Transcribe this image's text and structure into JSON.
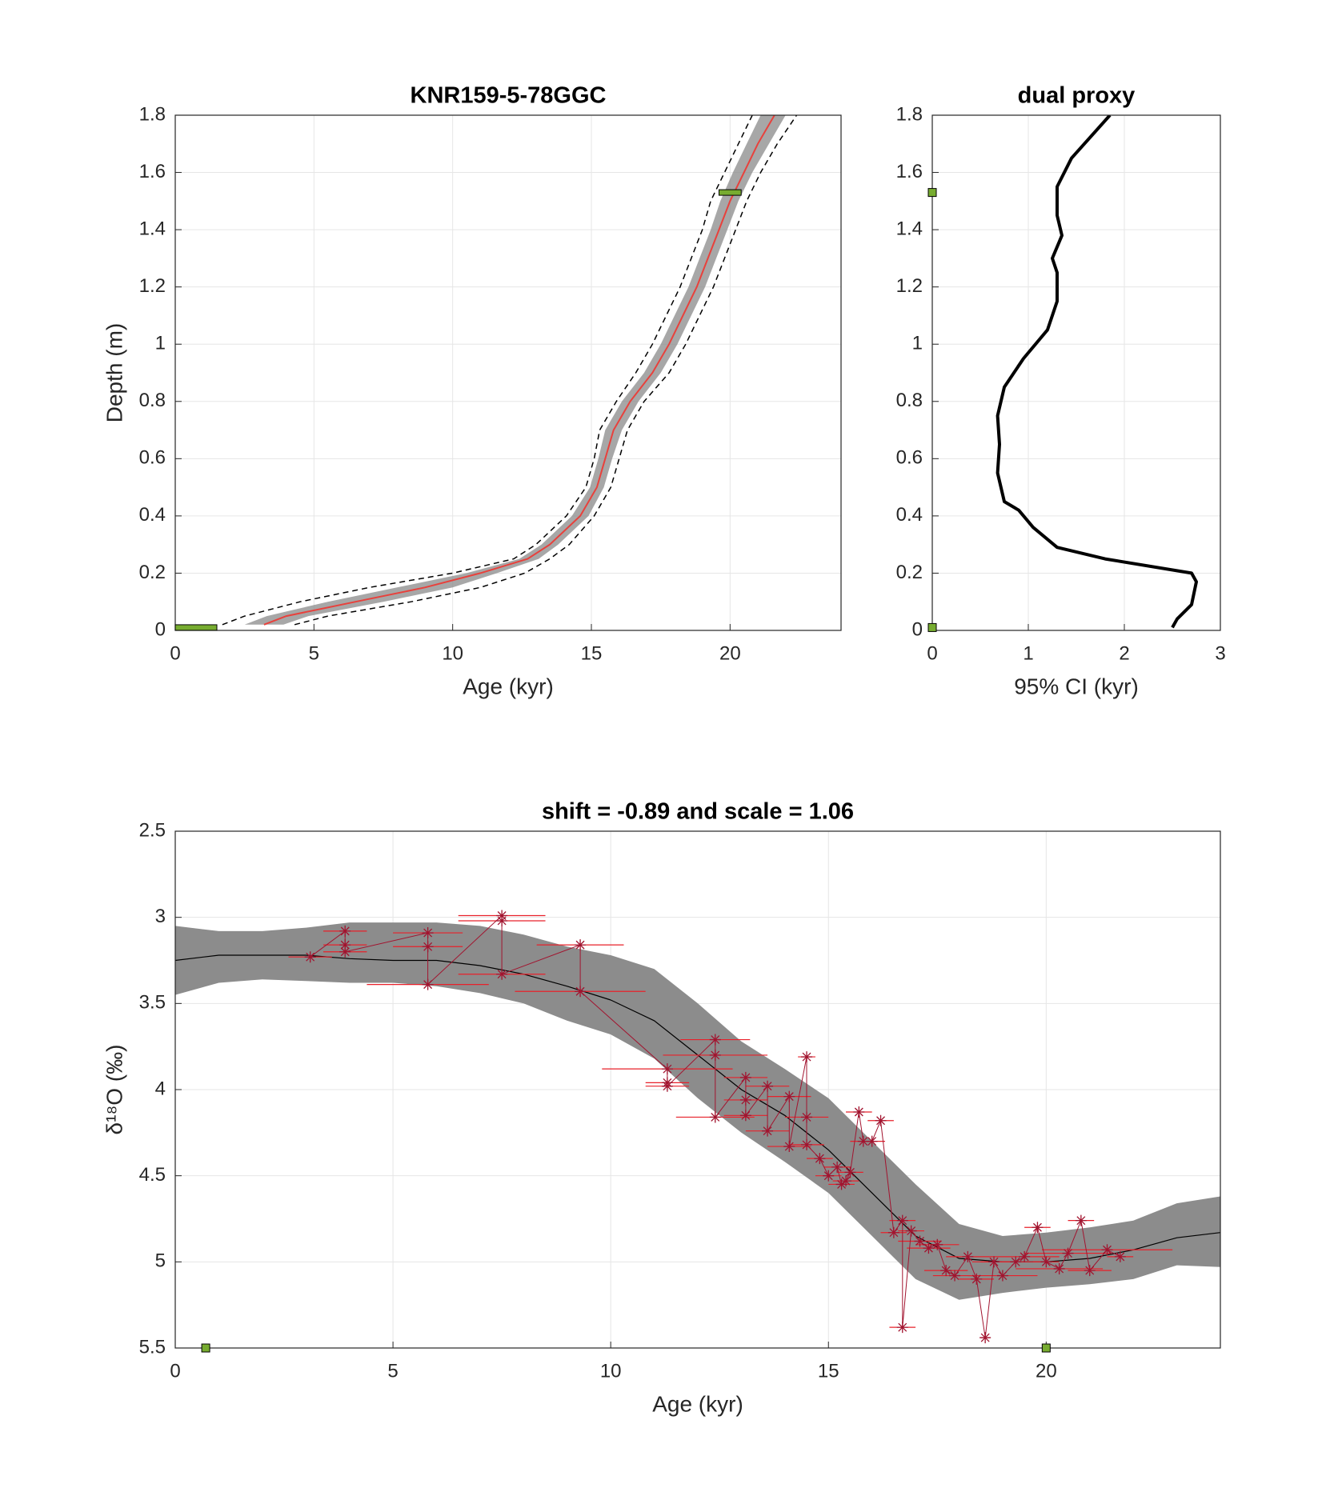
{
  "chart_data": [
    {
      "type": "line",
      "title": "KNR159-5-78GGC",
      "xlabel": "Age (kyr)",
      "ylabel": "Depth (m)",
      "xlim": [
        0,
        24
      ],
      "ylim": [
        0,
        1.8
      ],
      "xticks": [
        0,
        5,
        10,
        15,
        20
      ],
      "yticks": [
        0,
        0.2,
        0.4,
        0.6,
        0.8,
        1,
        1.2,
        1.4,
        1.6,
        1.8
      ],
      "grid": true,
      "y": [
        0.02,
        0.05,
        0.1,
        0.15,
        0.2,
        0.25,
        0.3,
        0.4,
        0.5,
        0.6,
        0.7,
        0.8,
        0.9,
        1.0,
        1.1,
        1.2,
        1.3,
        1.4,
        1.5,
        1.6,
        1.7,
        1.8
      ],
      "band": {
        "color": "#8a8a8a",
        "low": [
          2.5,
          3.3,
          5.5,
          8,
          10.5,
          12.4,
          13.2,
          14.3,
          14.95,
          15.25,
          15.5,
          16.1,
          16.9,
          17.5,
          18,
          18.5,
          18.9,
          19.3,
          19.65,
          20.1,
          20.6,
          21.1
        ],
        "high": [
          3.9,
          4.8,
          7.5,
          10,
          11.6,
          13.1,
          13.8,
          14.9,
          15.45,
          15.75,
          16.1,
          16.7,
          17.5,
          18.1,
          18.6,
          19.1,
          19.5,
          19.9,
          20.3,
          20.8,
          21.4,
          22.0
        ]
      },
      "series": [
        {
          "color": "#000000",
          "dash": true,
          "x": [
            1.7,
            2.5,
            4.5,
            7,
            10,
            12.2,
            13,
            14.1,
            14.8,
            15.1,
            15.3,
            15.9,
            16.6,
            17.2,
            17.7,
            18.2,
            18.6,
            19.0,
            19.3,
            19.8,
            20.3,
            20.8
          ]
        },
        {
          "color": "#000000",
          "dash": true,
          "x": [
            4.3,
            5.5,
            8.5,
            11,
            12.6,
            13.5,
            14.2,
            15.1,
            15.7,
            16.0,
            16.3,
            16.9,
            17.8,
            18.4,
            18.9,
            19.4,
            19.8,
            20.2,
            20.6,
            21.1,
            21.7,
            22.4
          ]
        },
        {
          "color": "#e8413c",
          "dash": false,
          "x": [
            3.2,
            4,
            6.5,
            9,
            11,
            12.7,
            13.5,
            14.6,
            15.2,
            15.5,
            15.8,
            16.4,
            17.2,
            17.8,
            18.3,
            18.8,
            19.2,
            19.6,
            20.0,
            20.5,
            21.0,
            21.6
          ]
        }
      ],
      "dates": {
        "color": "#77ac30",
        "x": [
          0.75,
          20
        ],
        "xerr": [
          0.75,
          0.4
        ],
        "y": [
          0.01,
          1.53
        ]
      }
    },
    {
      "type": "line",
      "title": "dual proxy",
      "xlabel": "95% CI (kyr)",
      "xlim": [
        0,
        3
      ],
      "ylim": [
        0,
        1.8
      ],
      "xticks": [
        0,
        1,
        2,
        3
      ],
      "yticks": [
        0,
        0.2,
        0.4,
        0.6,
        0.8,
        1,
        1.2,
        1.4,
        1.6,
        1.8
      ],
      "grid": true,
      "color": "#000000",
      "x": [
        2.5,
        2.55,
        2.7,
        2.75,
        2.7,
        1.8,
        1.3,
        1.05,
        0.9,
        0.75,
        0.68,
        0.7,
        0.68,
        0.75,
        0.95,
        1.2,
        1.3,
        1.3,
        1.25,
        1.35,
        1.3,
        1.3,
        1.45,
        1.85
      ],
      "y": [
        0.01,
        0.04,
        0.09,
        0.17,
        0.2,
        0.25,
        0.29,
        0.36,
        0.42,
        0.45,
        0.55,
        0.65,
        0.75,
        0.85,
        0.95,
        1.05,
        1.15,
        1.25,
        1.3,
        1.38,
        1.45,
        1.55,
        1.65,
        1.8
      ],
      "dates": {
        "color": "#77ac30",
        "x": [
          0,
          0
        ],
        "y": [
          0.01,
          1.53
        ]
      }
    },
    {
      "type": "scatter",
      "title": "shift = -0.89 and scale = 1.06",
      "xlabel": "Age (kyr)",
      "ylabel": "δ¹⁸O (‰)",
      "xlim": [
        0,
        24
      ],
      "ylim": [
        2.5,
        5.5
      ],
      "y_reversed": true,
      "xticks": [
        0,
        5,
        10,
        15,
        20
      ],
      "yticks": [
        2.5,
        3,
        3.5,
        4,
        4.5,
        5,
        5.5
      ],
      "grid": true,
      "model": {
        "color": "#000000",
        "band_color": "#8c8c8c",
        "x": [
          0,
          1,
          2,
          3,
          4,
          5,
          6,
          7,
          8,
          9,
          10,
          11,
          12,
          13,
          14,
          15,
          16,
          17,
          18,
          19,
          20,
          21,
          22,
          23,
          24
        ],
        "values": [
          3.25,
          3.22,
          3.22,
          3.22,
          3.24,
          3.25,
          3.25,
          3.28,
          3.33,
          3.4,
          3.48,
          3.6,
          3.8,
          4.0,
          4.15,
          4.35,
          4.6,
          4.85,
          4.98,
          5.0,
          5.0,
          4.98,
          4.93,
          4.86,
          4.83
        ],
        "low": [
          3.05,
          3.08,
          3.08,
          3.06,
          3.03,
          3.03,
          3.03,
          3.05,
          3.1,
          3.17,
          3.22,
          3.3,
          3.5,
          3.72,
          3.88,
          4.05,
          4.3,
          4.55,
          4.78,
          4.85,
          4.83,
          4.8,
          4.76,
          4.66,
          4.62
        ],
        "high": [
          3.45,
          3.38,
          3.36,
          3.37,
          3.38,
          3.38,
          3.4,
          3.44,
          3.5,
          3.6,
          3.68,
          3.82,
          4.05,
          4.25,
          4.42,
          4.6,
          4.85,
          5.1,
          5.22,
          5.18,
          5.15,
          5.13,
          5.1,
          5.02,
          5.03
        ]
      },
      "marker_color": "#a2142f",
      "errorbar_color": "#e8202a",
      "x": [
        3.1,
        3.9,
        3.9,
        3.9,
        5.8,
        5.8,
        5.8,
        7.5,
        7.5,
        7.5,
        9.3,
        9.3,
        11.3,
        11.3,
        11.3,
        12.4,
        12.4,
        12.4,
        13.1,
        13.1,
        13.1,
        13.6,
        13.6,
        14.1,
        14.1,
        14.5,
        14.5,
        14.5,
        14.8,
        15.0,
        15.2,
        15.3,
        15.4,
        15.5,
        15.7,
        15.8,
        16.0,
        16.2,
        16.5,
        16.7,
        16.7,
        16.9,
        17.1,
        17.3,
        17.5,
        17.7,
        17.9,
        18.2,
        18.4,
        18.6,
        18.8,
        19.0,
        19.3,
        19.5,
        19.8,
        20.0,
        20.3,
        20.5,
        20.8,
        21.0,
        21.4,
        21.7
      ],
      "values": [
        3.23,
        3.08,
        3.16,
        3.2,
        3.09,
        3.17,
        3.39,
        2.99,
        3.02,
        3.33,
        3.16,
        3.43,
        3.88,
        3.96,
        3.98,
        3.71,
        3.8,
        4.16,
        3.93,
        4.06,
        4.15,
        3.98,
        4.24,
        4.04,
        4.33,
        3.81,
        4.16,
        4.32,
        4.4,
        4.5,
        4.45,
        4.55,
        4.53,
        4.48,
        4.13,
        4.3,
        4.3,
        4.18,
        4.83,
        4.76,
        5.38,
        4.82,
        4.88,
        4.92,
        4.9,
        5.05,
        5.08,
        4.97,
        5.1,
        5.44,
        5.0,
        5.08,
        5.0,
        4.97,
        4.8,
        5.0,
        5.04,
        4.95,
        4.76,
        5.05,
        4.93,
        4.97
      ],
      "xerr": [
        0.5,
        0.5,
        0.5,
        0.5,
        0.8,
        0.8,
        1.4,
        1,
        1,
        1,
        1,
        1.5,
        1.5,
        0.5,
        0.5,
        0.8,
        1.2,
        0.9,
        0.5,
        0.5,
        0.5,
        0.5,
        0.5,
        0.5,
        0.5,
        0.2,
        0.5,
        0.4,
        0.3,
        0.3,
        0.3,
        0.3,
        0.3,
        0.3,
        0.3,
        0.3,
        0.3,
        0.3,
        0.3,
        0.3,
        0.3,
        0.3,
        0.5,
        0.5,
        0.5,
        0.5,
        0.5,
        0.5,
        0.4,
        0.1,
        0.5,
        0.8,
        0.8,
        0.8,
        0.3,
        0.3,
        1,
        1,
        0.3,
        0.5,
        1.5,
        0.3
      ],
      "dates": {
        "color": "#77ac30",
        "x": [
          0.7,
          20
        ],
        "values": [
          5.5,
          5.5
        ]
      }
    }
  ]
}
